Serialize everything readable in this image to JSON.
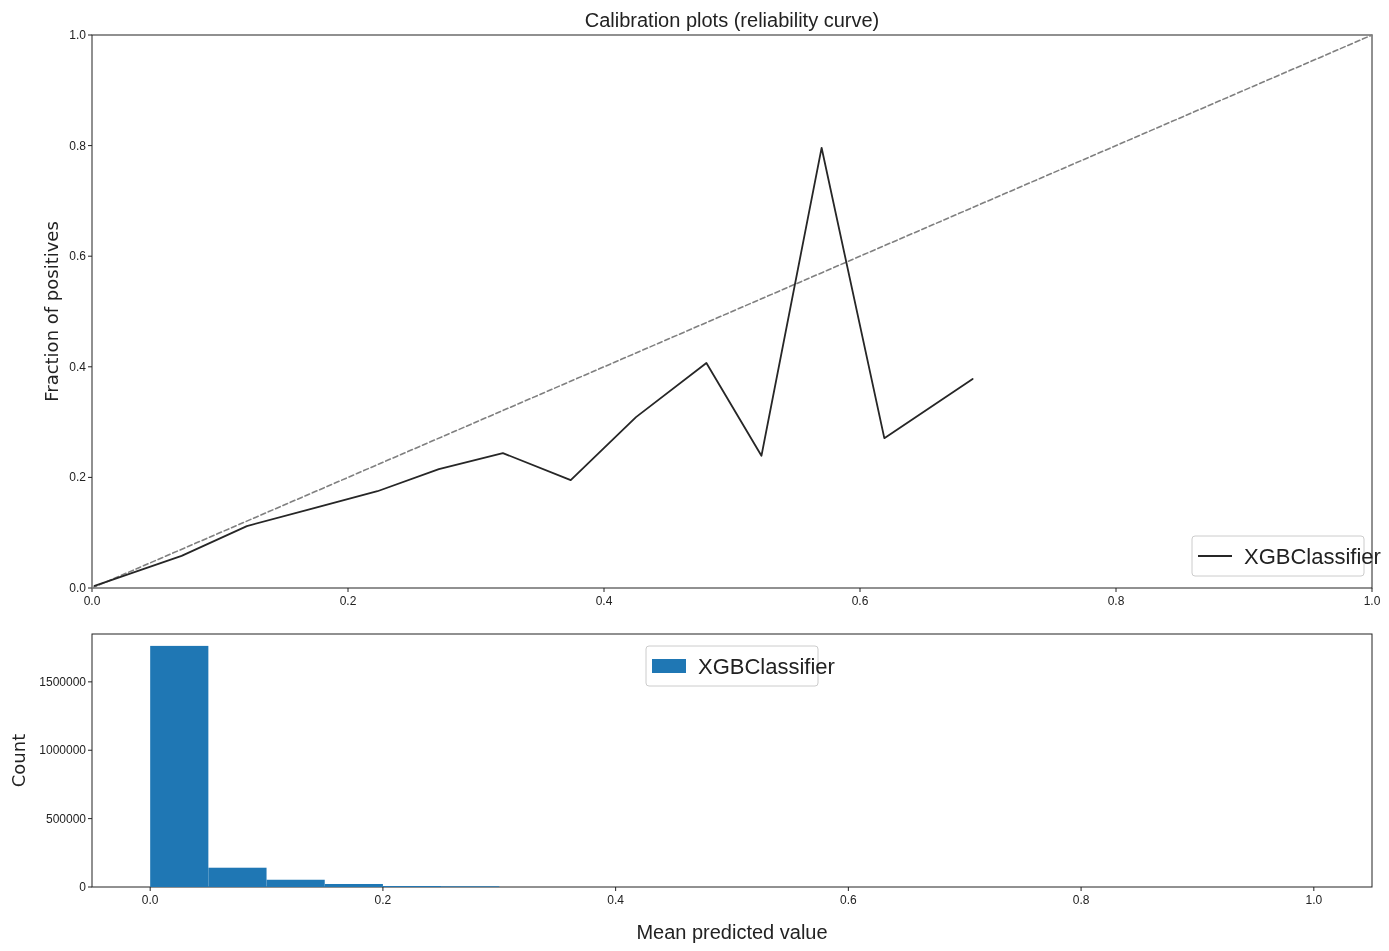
{
  "chart_data": [
    {
      "type": "line",
      "title": "Calibration plots  (reliability curve)",
      "ylabel": "Fraction of positives",
      "xlim": [
        0,
        1
      ],
      "ylim": [
        0,
        1
      ],
      "xticks": [
        {
          "value": 0,
          "label": "0.0"
        },
        {
          "value": 0.2,
          "label": "0.2"
        },
        {
          "value": 0.4,
          "label": "0.4"
        },
        {
          "value": 0.6,
          "label": "0.6"
        },
        {
          "value": 0.8,
          "label": "0.8"
        },
        {
          "value": 1,
          "label": "1.0"
        }
      ],
      "yticks": [
        {
          "value": 0,
          "label": "0.0"
        },
        {
          "value": 0.2,
          "label": "0.2"
        },
        {
          "value": 0.4,
          "label": "0.4"
        },
        {
          "value": 0.6,
          "label": "0.6"
        },
        {
          "value": 0.8,
          "label": "0.8"
        },
        {
          "value": 1,
          "label": "1.0"
        }
      ],
      "legend": "bottom right",
      "grid": false,
      "marker": "none",
      "series": [
        {
          "color": "#808080",
          "line_style": "dashed",
          "x": [
            0,
            1
          ],
          "values": [
            0,
            1
          ]
        },
        {
          "name": "XGBClassifier",
          "color": "#262626",
          "line_style": "solid",
          "x": [
            0.002,
            0.07,
            0.121,
            0.223,
            0.271,
            0.321,
            0.374,
            0.425,
            0.48,
            0.523,
            0.57,
            0.619,
            0.688
          ],
          "values": [
            0.004,
            0.058,
            0.112,
            0.175,
            0.215,
            0.244,
            0.195,
            0.309,
            0.407,
            0.239,
            0.796,
            0.271,
            0.378
          ]
        }
      ]
    },
    {
      "type": "histogram",
      "xlabel": "Mean predicted value",
      "ylabel": "Count",
      "xlim": [
        -0.05,
        1.05
      ],
      "ylim": [
        0,
        1850000
      ],
      "xticks": [
        {
          "value": 0,
          "label": "0.0"
        },
        {
          "value": 0.2,
          "label": "0.2"
        },
        {
          "value": 0.4,
          "label": "0.4"
        },
        {
          "value": 0.6,
          "label": "0.6"
        },
        {
          "value": 0.8,
          "label": "0.8"
        },
        {
          "value": 1,
          "label": "1.0"
        }
      ],
      "yticks": [
        0,
        500000,
        1000000,
        1500000
      ],
      "legend": "top",
      "grid": false,
      "bins": [
        0,
        0.05,
        0.1,
        0.15,
        0.2,
        0.25,
        0.3
      ],
      "series": [
        {
          "name": "XGBClassifier",
          "color": "#1f77b4",
          "values": [
            1763000,
            141000,
            53000,
            22000,
            7000,
            5000
          ]
        }
      ]
    }
  ]
}
